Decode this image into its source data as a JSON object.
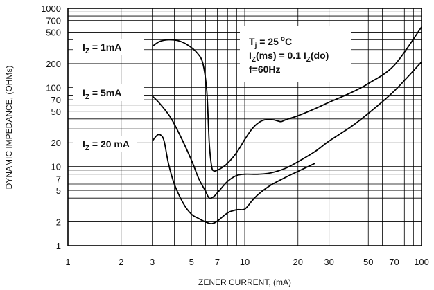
{
  "chart_data": {
    "type": "line",
    "title": "",
    "xlabel": "ZENER CURRENT, (mA)",
    "ylabel": "DYNAMIC IMPEDANCE, (OHMs)",
    "x_scale": "log",
    "y_scale": "log",
    "xlim": [
      1,
      100
    ],
    "ylim": [
      1,
      1000
    ],
    "grid": true,
    "x_ticks": [
      1,
      2,
      3,
      5,
      7,
      10,
      20,
      30,
      50,
      70,
      100
    ],
    "x_tick_labels": [
      "1",
      "2",
      "3",
      "5",
      "7",
      "10",
      "20",
      "30",
      "50",
      "70",
      "100"
    ],
    "y_ticks": [
      1,
      2,
      5,
      7,
      10,
      20,
      50,
      70,
      100,
      200,
      500,
      700,
      1000
    ],
    "y_tick_labels": [
      "1",
      "2",
      "5",
      "7",
      "10",
      "20",
      "50",
      "70",
      "100",
      "200",
      "500",
      "700",
      "1000"
    ],
    "series": [
      {
        "name": "IZ = 1mA",
        "label_main": "I",
        "label_sub": "Z",
        "label_rest": " = 1mA",
        "points": [
          [
            3,
            330
          ],
          [
            3.3,
            380
          ],
          [
            3.7,
            400
          ],
          [
            4.2,
            390
          ],
          [
            4.8,
            340
          ],
          [
            5.4,
            270
          ],
          [
            5.8,
            200
          ],
          [
            6.1,
            90
          ],
          [
            6.3,
            20
          ],
          [
            6.5,
            10
          ],
          [
            6.7,
            8.8
          ],
          [
            7,
            9
          ],
          [
            7.5,
            9.8
          ],
          [
            8,
            11
          ],
          [
            9,
            15
          ],
          [
            10,
            22
          ],
          [
            11,
            30
          ],
          [
            12,
            36
          ],
          [
            13,
            39
          ],
          [
            14.5,
            39
          ],
          [
            16,
            37
          ],
          [
            17,
            39
          ],
          [
            20,
            44
          ],
          [
            25,
            54
          ],
          [
            30,
            65
          ],
          [
            40,
            86
          ],
          [
            50,
            112
          ],
          [
            70,
            190
          ],
          [
            100,
            580
          ]
        ]
      },
      {
        "name": "IZ = 5mA",
        "label_main": "I",
        "label_sub": "Z",
        "label_rest": " = 5mA",
        "points": [
          [
            3,
            78
          ],
          [
            3.3,
            63
          ],
          [
            3.8,
            42
          ],
          [
            4.3,
            25
          ],
          [
            5,
            12
          ],
          [
            5.5,
            7
          ],
          [
            6,
            4.9
          ],
          [
            6.3,
            4
          ],
          [
            6.7,
            4.2
          ],
          [
            7.2,
            5
          ],
          [
            8,
            6.5
          ],
          [
            9,
            7.7
          ],
          [
            10,
            8
          ],
          [
            12,
            8
          ],
          [
            14,
            8.3
          ],
          [
            17,
            9.5
          ],
          [
            20,
            11.5
          ],
          [
            25,
            15.5
          ],
          [
            30,
            21
          ],
          [
            40,
            32
          ],
          [
            50,
            47
          ],
          [
            70,
            90
          ],
          [
            100,
            210
          ]
        ]
      },
      {
        "name": "IZ = 20 mA",
        "label_main": "I",
        "label_sub": "Z",
        "label_rest": " = 20 mA",
        "points": [
          [
            3,
            21
          ],
          [
            3.2,
            25
          ],
          [
            3.35,
            25
          ],
          [
            3.5,
            21
          ],
          [
            3.7,
            11
          ],
          [
            4,
            6
          ],
          [
            4.5,
            3.4
          ],
          [
            5,
            2.5
          ],
          [
            5.5,
            2.2
          ],
          [
            6,
            2
          ],
          [
            6.5,
            1.9
          ],
          [
            7,
            2.05
          ],
          [
            8,
            2.6
          ],
          [
            9,
            2.85
          ],
          [
            10,
            2.9
          ],
          [
            11,
            3.7
          ],
          [
            12,
            4.5
          ],
          [
            14,
            5.8
          ],
          [
            17,
            7.3
          ],
          [
            20,
            8.7
          ],
          [
            25,
            11
          ]
        ]
      }
    ],
    "annotation": {
      "line1_main": "T",
      "line1_sub": "j",
      "line1_rest": " = 25",
      "line1_deg": "o",
      "line1_unit": "C",
      "line2_main": "I",
      "line2_sub": "Z",
      "line2_mid": "(ms) = 0.1 I",
      "line2_sub2": "Z",
      "line2_rest": "(do)",
      "line3": "f=60Hz"
    }
  }
}
